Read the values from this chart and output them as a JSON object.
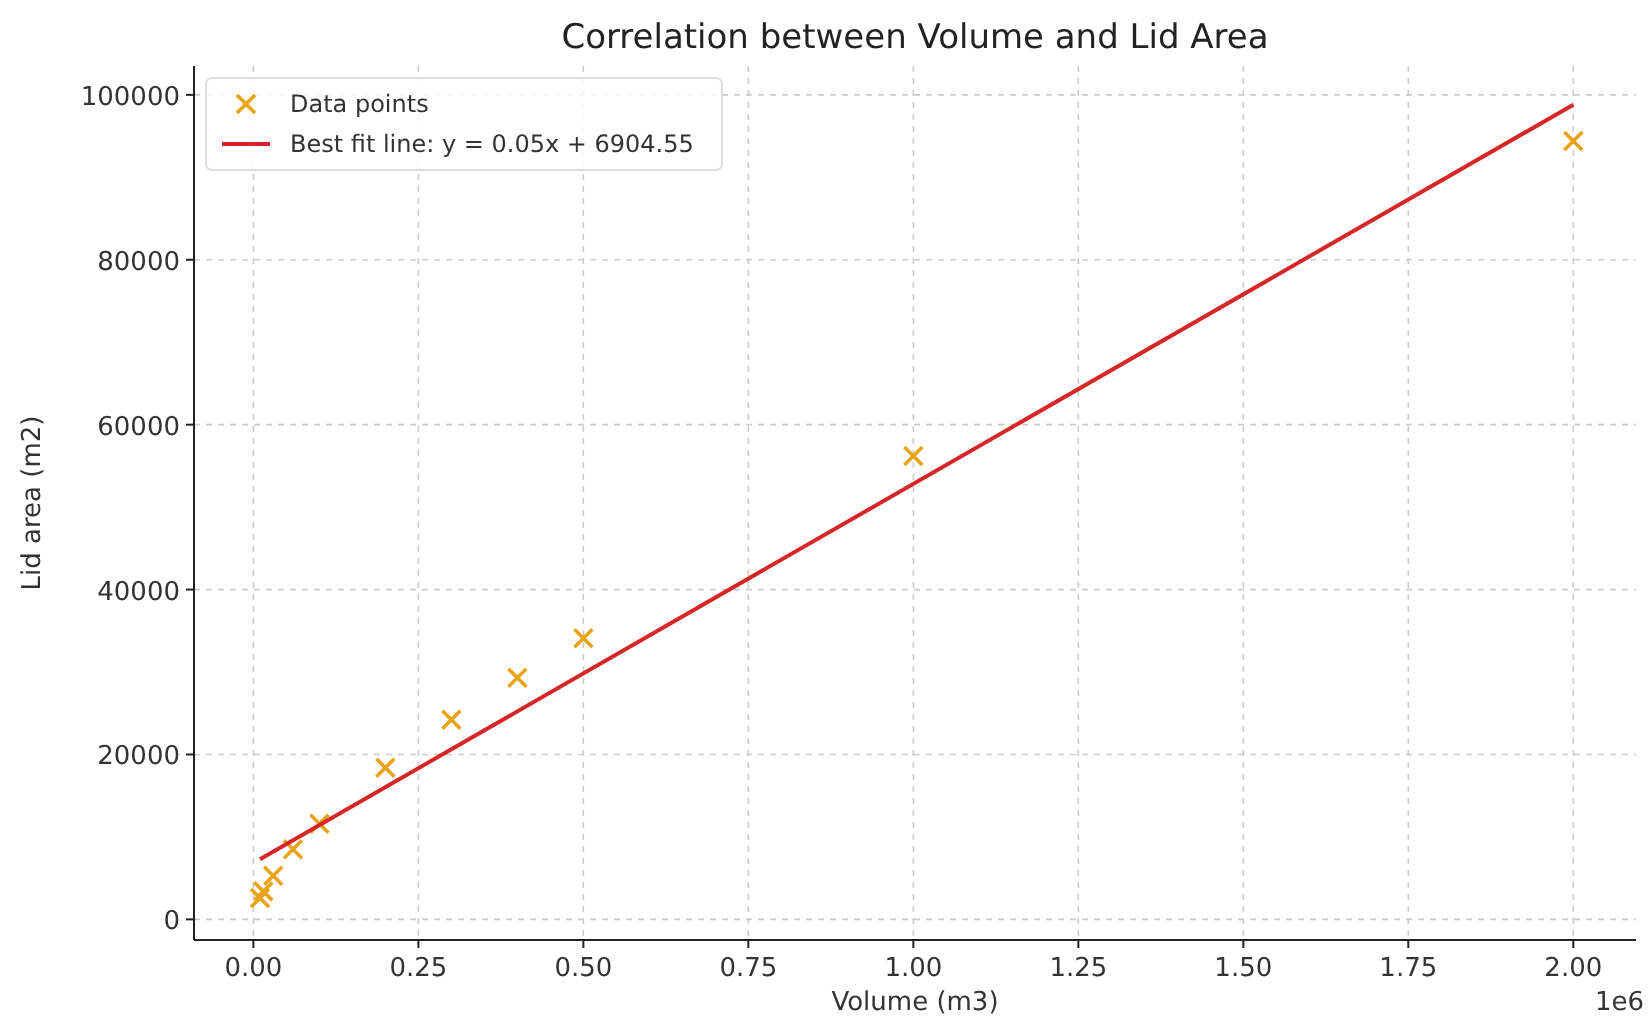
{
  "chart_data": {
    "type": "scatter",
    "title": "Correlation between Volume and Lid Area",
    "xlabel": "Volume (m3)",
    "ylabel": "Lid area (m2)",
    "annotations": [
      "1e6"
    ],
    "series": [
      {
        "name": "Data points",
        "color": "#e8a317",
        "marker": "cross",
        "x": [
          0.01,
          0.015,
          0.03,
          0.06,
          0.1,
          0.2,
          0.3,
          0.4,
          0.5,
          1.0,
          2.0
        ],
        "values": [
          2600,
          3400,
          5300,
          8500,
          11600,
          18400,
          24200,
          29300,
          34100,
          56200,
          94400
        ]
      },
      {
        "name": "Best fit line: y = 0.05x + 6904.55",
        "type": "line",
        "color": "#d62728",
        "line_style": "solid",
        "x": [
          0.01,
          2.0
        ],
        "values": [
          7300,
          98800
        ]
      }
    ],
    "xlim": [
      -0.09,
      2.095
    ],
    "ylim": [
      -2500,
      103500
    ],
    "xticks": [
      {
        "value": 0,
        "label": "0.00"
      },
      0.25,
      {
        "value": 0.5,
        "label": "0.50"
      },
      0.75,
      {
        "value": 1,
        "label": "1.00"
      },
      1.25,
      {
        "value": 1.5,
        "label": "1.50"
      },
      1.75,
      {
        "value": 2,
        "label": "2.00"
      }
    ],
    "yticks": [
      0,
      20000,
      40000,
      60000,
      80000,
      100000
    ],
    "grid": true,
    "legend": "top left"
  }
}
